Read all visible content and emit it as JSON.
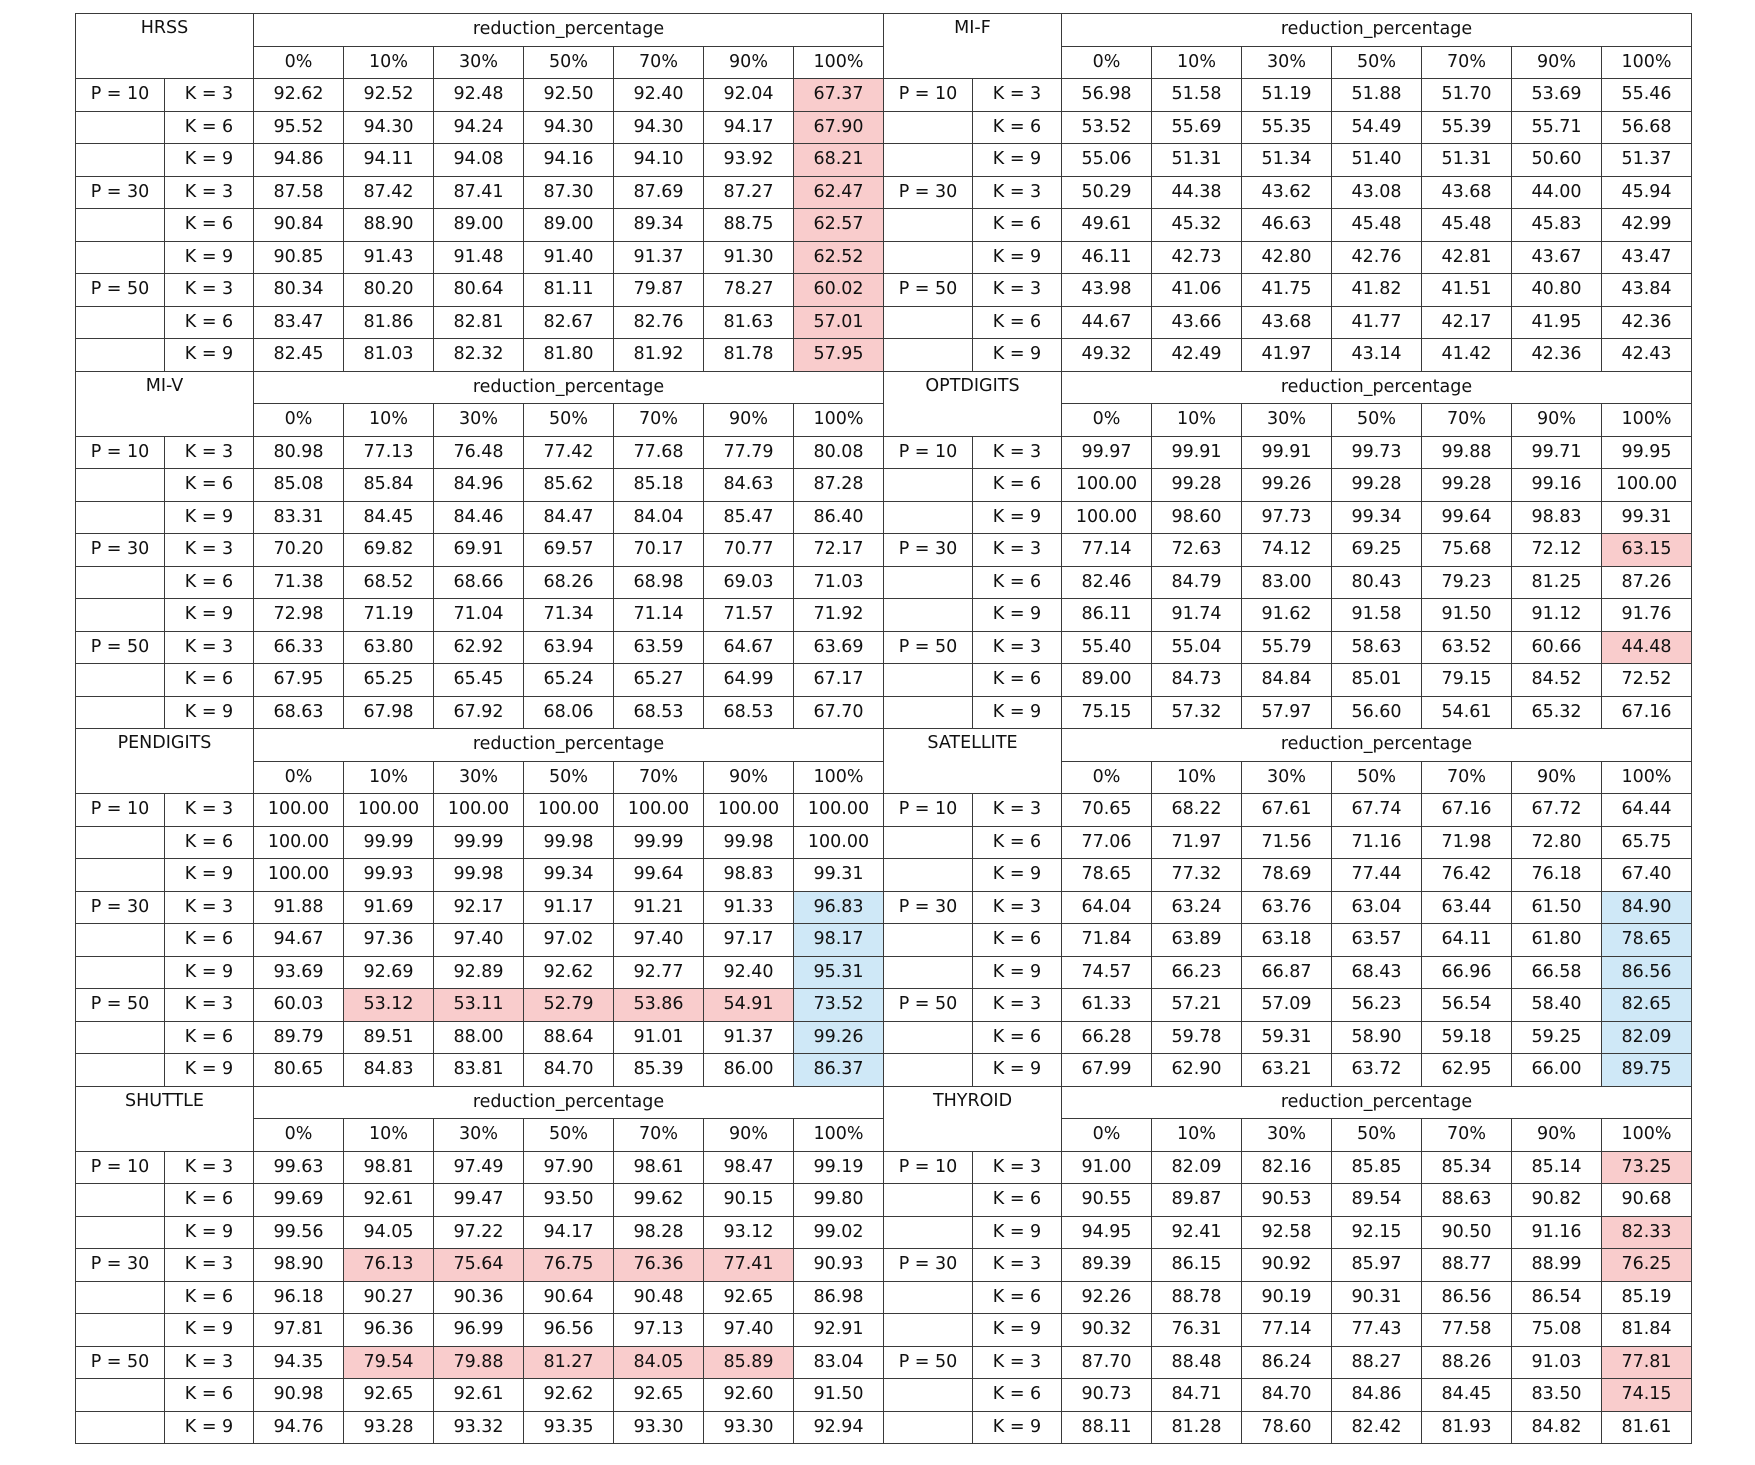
{
  "header_label": "reduction_percentage",
  "columns": [
    "0%",
    "10%",
    "30%",
    "50%",
    "70%",
    "90%",
    "100%"
  ],
  "row_labels": [
    {
      "p": "P = 10",
      "k": "K = 3"
    },
    {
      "p": "",
      "k": "K = 6"
    },
    {
      "p": "",
      "k": "K = 9"
    },
    {
      "p": "P = 30",
      "k": "K = 3"
    },
    {
      "p": "",
      "k": "K = 6"
    },
    {
      "p": "",
      "k": "K = 9"
    },
    {
      "p": "P = 50",
      "k": "K = 3"
    },
    {
      "p": "",
      "k": "K = 6"
    },
    {
      "p": "",
      "k": "K = 9"
    }
  ],
  "highlight_colors": {
    "red": "#f9cccc",
    "blue": "#cfe8f7"
  },
  "datasets": [
    {
      "name": "HRSS",
      "rows": [
        [
          "92.62",
          "92.52",
          "92.48",
          "92.50",
          "92.40",
          "92.04",
          "67.37"
        ],
        [
          "95.52",
          "94.30",
          "94.24",
          "94.30",
          "94.30",
          "94.17",
          "67.90"
        ],
        [
          "94.86",
          "94.11",
          "94.08",
          "94.16",
          "94.10",
          "93.92",
          "68.21"
        ],
        [
          "87.58",
          "87.42",
          "87.41",
          "87.30",
          "87.69",
          "87.27",
          "62.47"
        ],
        [
          "90.84",
          "88.90",
          "89.00",
          "89.00",
          "89.34",
          "88.75",
          "62.57"
        ],
        [
          "90.85",
          "91.43",
          "91.48",
          "91.40",
          "91.37",
          "91.30",
          "62.52"
        ],
        [
          "80.34",
          "80.20",
          "80.64",
          "81.11",
          "79.87",
          "78.27",
          "60.02"
        ],
        [
          "83.47",
          "81.86",
          "82.81",
          "82.67",
          "82.76",
          "81.63",
          "57.01"
        ],
        [
          "82.45",
          "81.03",
          "82.32",
          "81.80",
          "81.92",
          "81.78",
          "57.95"
        ]
      ],
      "highlights": [
        [
          0,
          6,
          "red"
        ],
        [
          1,
          6,
          "red"
        ],
        [
          2,
          6,
          "red"
        ],
        [
          3,
          6,
          "red"
        ],
        [
          4,
          6,
          "red"
        ],
        [
          5,
          6,
          "red"
        ],
        [
          6,
          6,
          "red"
        ],
        [
          7,
          6,
          "red"
        ],
        [
          8,
          6,
          "red"
        ]
      ]
    },
    {
      "name": "MI-F",
      "rows": [
        [
          "56.98",
          "51.58",
          "51.19",
          "51.88",
          "51.70",
          "53.69",
          "55.46"
        ],
        [
          "53.52",
          "55.69",
          "55.35",
          "54.49",
          "55.39",
          "55.71",
          "56.68"
        ],
        [
          "55.06",
          "51.31",
          "51.34",
          "51.40",
          "51.31",
          "50.60",
          "51.37"
        ],
        [
          "50.29",
          "44.38",
          "43.62",
          "43.08",
          "43.68",
          "44.00",
          "45.94"
        ],
        [
          "49.61",
          "45.32",
          "46.63",
          "45.48",
          "45.48",
          "45.83",
          "42.99"
        ],
        [
          "46.11",
          "42.73",
          "42.80",
          "42.76",
          "42.81",
          "43.67",
          "43.47"
        ],
        [
          "43.98",
          "41.06",
          "41.75",
          "41.82",
          "41.51",
          "40.80",
          "43.84"
        ],
        [
          "44.67",
          "43.66",
          "43.68",
          "41.77",
          "42.17",
          "41.95",
          "42.36"
        ],
        [
          "49.32",
          "42.49",
          "41.97",
          "43.14",
          "41.42",
          "42.36",
          "42.43"
        ]
      ],
      "highlights": []
    },
    {
      "name": "MI-V",
      "rows": [
        [
          "80.98",
          "77.13",
          "76.48",
          "77.42",
          "77.68",
          "77.79",
          "80.08"
        ],
        [
          "85.08",
          "85.84",
          "84.96",
          "85.62",
          "85.18",
          "84.63",
          "87.28"
        ],
        [
          "83.31",
          "84.45",
          "84.46",
          "84.47",
          "84.04",
          "85.47",
          "86.40"
        ],
        [
          "70.20",
          "69.82",
          "69.91",
          "69.57",
          "70.17",
          "70.77",
          "72.17"
        ],
        [
          "71.38",
          "68.52",
          "68.66",
          "68.26",
          "68.98",
          "69.03",
          "71.03"
        ],
        [
          "72.98",
          "71.19",
          "71.04",
          "71.34",
          "71.14",
          "71.57",
          "71.92"
        ],
        [
          "66.33",
          "63.80",
          "62.92",
          "63.94",
          "63.59",
          "64.67",
          "63.69"
        ],
        [
          "67.95",
          "65.25",
          "65.45",
          "65.24",
          "65.27",
          "64.99",
          "67.17"
        ],
        [
          "68.63",
          "67.98",
          "67.92",
          "68.06",
          "68.53",
          "68.53",
          "67.70"
        ]
      ],
      "highlights": []
    },
    {
      "name": "OPTDIGITS",
      "rows": [
        [
          "99.97",
          "99.91",
          "99.91",
          "99.73",
          "99.88",
          "99.71",
          "99.95"
        ],
        [
          "100.00",
          "99.28",
          "99.26",
          "99.28",
          "99.28",
          "99.16",
          "100.00"
        ],
        [
          "100.00",
          "98.60",
          "97.73",
          "99.34",
          "99.64",
          "98.83",
          "99.31"
        ],
        [
          "77.14",
          "72.63",
          "74.12",
          "69.25",
          "75.68",
          "72.12",
          "63.15"
        ],
        [
          "82.46",
          "84.79",
          "83.00",
          "80.43",
          "79.23",
          "81.25",
          "87.26"
        ],
        [
          "86.11",
          "91.74",
          "91.62",
          "91.58",
          "91.50",
          "91.12",
          "91.76"
        ],
        [
          "55.40",
          "55.04",
          "55.79",
          "58.63",
          "63.52",
          "60.66",
          "44.48"
        ],
        [
          "89.00",
          "84.73",
          "84.84",
          "85.01",
          "79.15",
          "84.52",
          "72.52"
        ],
        [
          "75.15",
          "57.32",
          "57.97",
          "56.60",
          "54.61",
          "65.32",
          "67.16"
        ]
      ],
      "highlights": [
        [
          3,
          6,
          "red"
        ],
        [
          6,
          6,
          "red"
        ]
      ]
    },
    {
      "name": "PENDIGITS",
      "rows": [
        [
          "100.00",
          "100.00",
          "100.00",
          "100.00",
          "100.00",
          "100.00",
          "100.00"
        ],
        [
          "100.00",
          "99.99",
          "99.99",
          "99.98",
          "99.99",
          "99.98",
          "100.00"
        ],
        [
          "100.00",
          "99.93",
          "99.98",
          "99.34",
          "99.64",
          "98.83",
          "99.31"
        ],
        [
          "91.88",
          "91.69",
          "92.17",
          "91.17",
          "91.21",
          "91.33",
          "96.83"
        ],
        [
          "94.67",
          "97.36",
          "97.40",
          "97.02",
          "97.40",
          "97.17",
          "98.17"
        ],
        [
          "93.69",
          "92.69",
          "92.89",
          "92.62",
          "92.77",
          "92.40",
          "95.31"
        ],
        [
          "60.03",
          "53.12",
          "53.11",
          "52.79",
          "53.86",
          "54.91",
          "73.52"
        ],
        [
          "89.79",
          "89.51",
          "88.00",
          "88.64",
          "91.01",
          "91.37",
          "99.26"
        ],
        [
          "80.65",
          "84.83",
          "83.81",
          "84.70",
          "85.39",
          "86.00",
          "86.37"
        ]
      ],
      "highlights": [
        [
          3,
          6,
          "blue"
        ],
        [
          4,
          6,
          "blue"
        ],
        [
          5,
          6,
          "blue"
        ],
        [
          6,
          1,
          "red"
        ],
        [
          6,
          2,
          "red"
        ],
        [
          6,
          3,
          "red"
        ],
        [
          6,
          4,
          "red"
        ],
        [
          6,
          5,
          "red"
        ],
        [
          6,
          6,
          "blue"
        ],
        [
          7,
          6,
          "blue"
        ],
        [
          8,
          6,
          "blue"
        ]
      ]
    },
    {
      "name": "SATELLITE",
      "rows": [
        [
          "70.65",
          "68.22",
          "67.61",
          "67.74",
          "67.16",
          "67.72",
          "64.44"
        ],
        [
          "77.06",
          "71.97",
          "71.56",
          "71.16",
          "71.98",
          "72.80",
          "65.75"
        ],
        [
          "78.65",
          "77.32",
          "78.69",
          "77.44",
          "76.42",
          "76.18",
          "67.40"
        ],
        [
          "64.04",
          "63.24",
          "63.76",
          "63.04",
          "63.44",
          "61.50",
          "84.90"
        ],
        [
          "71.84",
          "63.89",
          "63.18",
          "63.57",
          "64.11",
          "61.80",
          "78.65"
        ],
        [
          "74.57",
          "66.23",
          "66.87",
          "68.43",
          "66.96",
          "66.58",
          "86.56"
        ],
        [
          "61.33",
          "57.21",
          "57.09",
          "56.23",
          "56.54",
          "58.40",
          "82.65"
        ],
        [
          "66.28",
          "59.78",
          "59.31",
          "58.90",
          "59.18",
          "59.25",
          "82.09"
        ],
        [
          "67.99",
          "62.90",
          "63.21",
          "63.72",
          "62.95",
          "66.00",
          "89.75"
        ]
      ],
      "highlights": [
        [
          3,
          6,
          "blue"
        ],
        [
          4,
          6,
          "blue"
        ],
        [
          5,
          6,
          "blue"
        ],
        [
          6,
          6,
          "blue"
        ],
        [
          7,
          6,
          "blue"
        ],
        [
          8,
          6,
          "blue"
        ]
      ]
    },
    {
      "name": "SHUTTLE",
      "rows": [
        [
          "99.63",
          "98.81",
          "97.49",
          "97.90",
          "98.61",
          "98.47",
          "99.19"
        ],
        [
          "99.69",
          "92.61",
          "99.47",
          "93.50",
          "99.62",
          "90.15",
          "99.80"
        ],
        [
          "99.56",
          "94.05",
          "97.22",
          "94.17",
          "98.28",
          "93.12",
          "99.02"
        ],
        [
          "98.90",
          "76.13",
          "75.64",
          "76.75",
          "76.36",
          "77.41",
          "90.93"
        ],
        [
          "96.18",
          "90.27",
          "90.36",
          "90.64",
          "90.48",
          "92.65",
          "86.98"
        ],
        [
          "97.81",
          "96.36",
          "96.99",
          "96.56",
          "97.13",
          "97.40",
          "92.91"
        ],
        [
          "94.35",
          "79.54",
          "79.88",
          "81.27",
          "84.05",
          "85.89",
          "83.04"
        ],
        [
          "90.98",
          "92.65",
          "92.61",
          "92.62",
          "92.65",
          "92.60",
          "91.50"
        ],
        [
          "94.76",
          "93.28",
          "93.32",
          "93.35",
          "93.30",
          "93.30",
          "92.94"
        ]
      ],
      "highlights": [
        [
          3,
          1,
          "red"
        ],
        [
          3,
          2,
          "red"
        ],
        [
          3,
          3,
          "red"
        ],
        [
          3,
          4,
          "red"
        ],
        [
          3,
          5,
          "red"
        ],
        [
          6,
          1,
          "red"
        ],
        [
          6,
          2,
          "red"
        ],
        [
          6,
          3,
          "red"
        ],
        [
          6,
          4,
          "red"
        ],
        [
          6,
          5,
          "red"
        ]
      ]
    },
    {
      "name": "THYROID",
      "rows": [
        [
          "91.00",
          "82.09",
          "82.16",
          "85.85",
          "85.34",
          "85.14",
          "73.25"
        ],
        [
          "90.55",
          "89.87",
          "90.53",
          "89.54",
          "88.63",
          "90.82",
          "90.68"
        ],
        [
          "94.95",
          "92.41",
          "92.58",
          "92.15",
          "90.50",
          "91.16",
          "82.33"
        ],
        [
          "89.39",
          "86.15",
          "90.92",
          "85.97",
          "88.77",
          "88.99",
          "76.25"
        ],
        [
          "92.26",
          "88.78",
          "90.19",
          "90.31",
          "86.56",
          "86.54",
          "85.19"
        ],
        [
          "90.32",
          "76.31",
          "77.14",
          "77.43",
          "77.58",
          "75.08",
          "81.84"
        ],
        [
          "87.70",
          "88.48",
          "86.24",
          "88.27",
          "88.26",
          "91.03",
          "77.81"
        ],
        [
          "90.73",
          "84.71",
          "84.70",
          "84.86",
          "84.45",
          "83.50",
          "74.15"
        ],
        [
          "88.11",
          "81.28",
          "78.60",
          "82.42",
          "81.93",
          "84.82",
          "81.61"
        ]
      ],
      "highlights": [
        [
          0,
          6,
          "red"
        ],
        [
          2,
          6,
          "red"
        ],
        [
          3,
          6,
          "red"
        ],
        [
          6,
          6,
          "red"
        ],
        [
          7,
          6,
          "red"
        ]
      ]
    }
  ]
}
